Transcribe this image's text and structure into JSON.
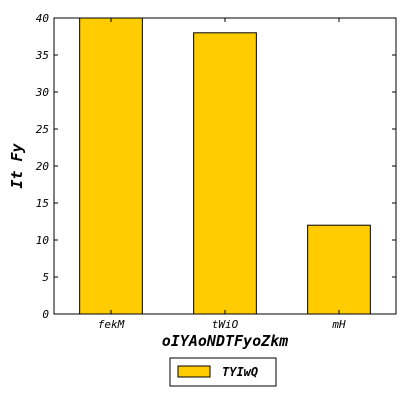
{
  "chart_data": {
    "type": "bar",
    "categories": [
      "fekM",
      "tWiO",
      "mH"
    ],
    "series": [
      {
        "name": "TYIwQ",
        "values": [
          40,
          38,
          12
        ],
        "color": "#ffcc00"
      }
    ],
    "xlabel": "oIYAoNDTFyoZkm",
    "ylabel": "It Fy",
    "ylim": [
      0,
      40
    ],
    "yticks": [
      0,
      5,
      10,
      15,
      20,
      25,
      30,
      35,
      40
    ],
    "grid": false,
    "legend_position": "bottom-center"
  }
}
